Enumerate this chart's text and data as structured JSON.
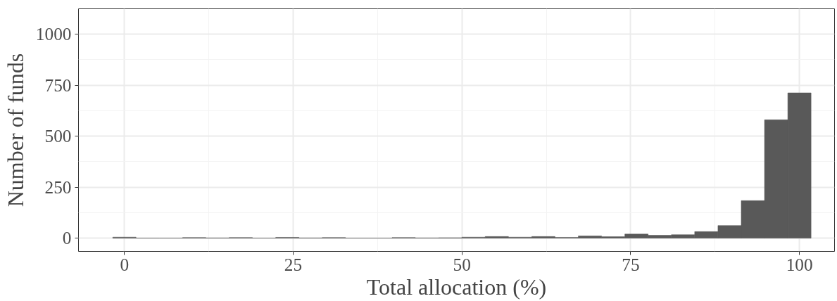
{
  "chart_data": {
    "type": "histogram",
    "xlabel": "Total allocation (%)",
    "ylabel": "Number of funds",
    "bins": [
      -1.724,
      1.724,
      5.172,
      8.621,
      12.069,
      15.517,
      18.966,
      22.414,
      25.862,
      29.31,
      32.759,
      36.207,
      39.655,
      43.103,
      46.552,
      50.0,
      53.448,
      56.897,
      60.345,
      63.793,
      67.241,
      70.69,
      74.138,
      77.586,
      81.034,
      84.483,
      87.931,
      91.379,
      94.828,
      98.276,
      101.724
    ],
    "values": [
      5,
      0,
      0,
      3,
      1,
      3,
      0,
      4,
      1,
      3,
      0,
      0,
      3,
      1,
      2,
      5,
      8,
      5,
      8,
      4,
      11,
      7,
      20,
      14,
      17,
      32,
      62,
      184,
      580,
      712
    ],
    "color": "#595959",
    "xlim": [
      -6.8,
      105.2
    ],
    "ylim": [
      -65,
      1124
    ],
    "xticks": [
      0,
      25,
      50,
      75,
      100
    ],
    "yticks": [
      0,
      250,
      500,
      750,
      1000
    ],
    "grid": true
  }
}
